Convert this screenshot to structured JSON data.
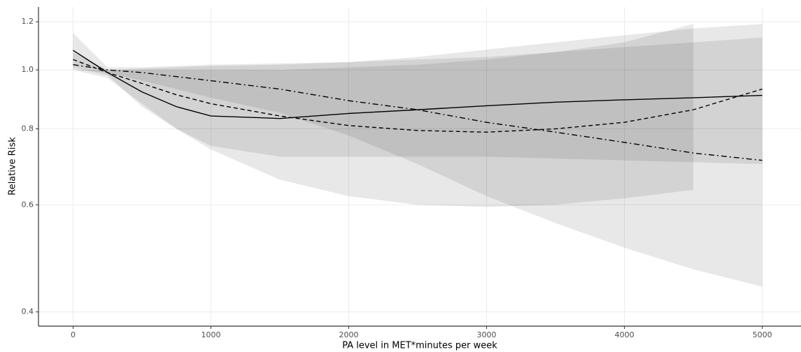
{
  "chart_data": {
    "type": "line",
    "x_label": "PA level in MET*minutes per week",
    "y_label": "Relative Risk",
    "log_y": true,
    "grid": true,
    "xlim": [
      -251,
      5281
    ],
    "ylim": [
      0.379,
      1.269
    ],
    "xticks": [
      0,
      1000,
      2000,
      3000,
      4000,
      5000
    ],
    "yticks": [
      0.4,
      0.6,
      0.8,
      {
        "value": 1,
        "label": "1.0"
      },
      1.2
    ],
    "x": [
      0,
      250,
      500,
      750,
      1000,
      1500,
      2000,
      2500,
      3000,
      3500,
      4000,
      4500,
      5000
    ],
    "bands": [
      {
        "color": "#000000",
        "lower": [
          1.01,
          0.98,
          0.87,
          0.8,
          0.75,
          0.72,
          0.72,
          0.72,
          0.72,
          0.715,
          0.71,
          0.705,
          0.7
        ],
        "upper": [
          1.15,
          1.01,
          1.01,
          1.015,
          1.02,
          1.025,
          1.03,
          1.04,
          1.05,
          1.07,
          1.09,
          1.11,
          1.13
        ]
      },
      {
        "color": "#000000",
        "lower": [
          1.0,
          0.97,
          0.88,
          0.8,
          0.74,
          0.66,
          0.62,
          0.6,
          0.595,
          0.6,
          0.615,
          0.635,
          null
        ],
        "upper": [
          1.07,
          1.0,
          1.0,
          1.0,
          1.0,
          1.0,
          1.01,
          1.02,
          1.04,
          1.07,
          1.11,
          1.19,
          null
        ]
      },
      {
        "color": "#000000",
        "lower": [
          1.0,
          0.99,
          0.96,
          0.93,
          0.9,
          0.85,
          0.78,
          0.7,
          0.62,
          0.56,
          0.51,
          0.47,
          0.44
        ],
        "upper": [
          1.0,
          1.0,
          1.005,
          1.01,
          1.015,
          1.02,
          1.03,
          1.05,
          1.08,
          1.11,
          1.14,
          1.17,
          1.19
        ]
      }
    ],
    "series": [
      {
        "color": "#000000",
        "dash": "solid",
        "values": [
          1.077,
          0.99,
          0.92,
          0.87,
          0.84,
          0.832,
          0.848,
          0.86,
          0.873,
          0.885,
          0.893,
          0.9,
          0.908
        ]
      },
      {
        "color": "#000000",
        "dash": "dashed",
        "values": [
          1.04,
          0.99,
          0.95,
          0.91,
          0.88,
          0.84,
          0.81,
          0.795,
          0.79,
          0.8,
          0.82,
          0.86,
          0.93
        ]
      },
      {
        "color": "#000000",
        "dash": "dashdot",
        "values": [
          1.02,
          1.0,
          0.99,
          0.975,
          0.96,
          0.93,
          0.89,
          0.86,
          0.82,
          0.79,
          0.76,
          0.73,
          0.71
        ]
      }
    ]
  }
}
